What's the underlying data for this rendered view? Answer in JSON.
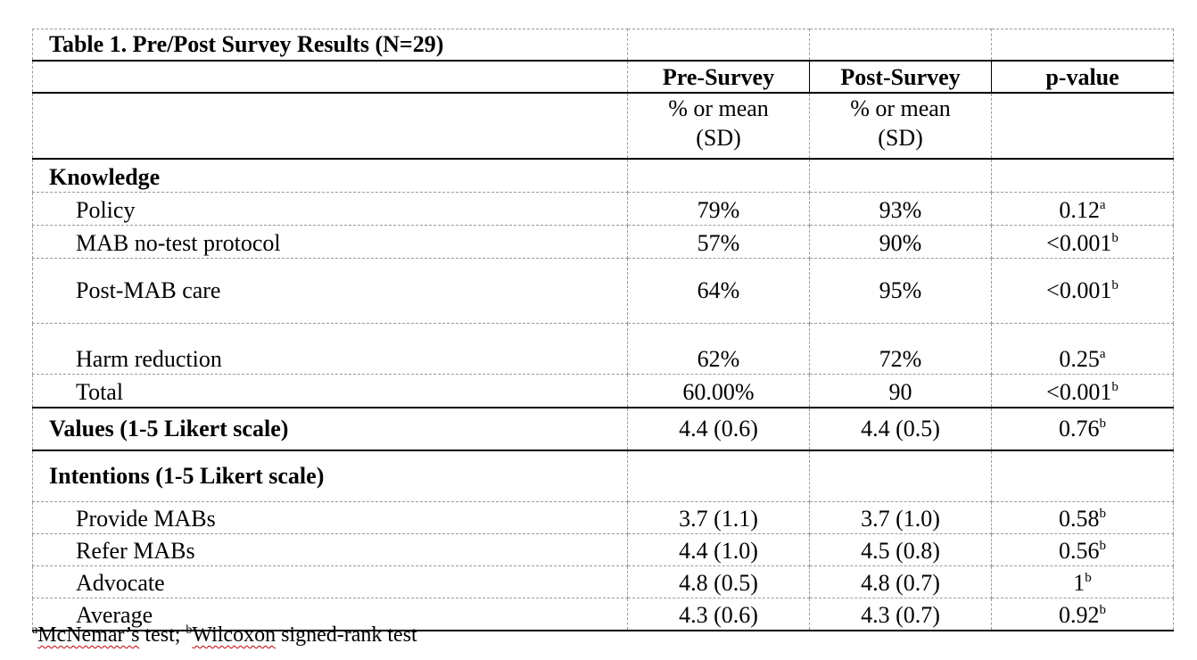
{
  "table": {
    "title": "Table 1. Pre/Post Survey Results (N=29)",
    "headers": [
      "",
      "Pre-Survey",
      "Post-Survey",
      "p-value"
    ],
    "subheaders": [
      "",
      "% or mean (SD)",
      "% or mean (SD)",
      ""
    ],
    "knowledge": {
      "label": "Knowledge",
      "rows": [
        {
          "label": "Policy",
          "pre": "79%",
          "post": "93%",
          "p": "0.12",
          "mark": "a"
        },
        {
          "label": "MAB no-test protocol",
          "pre": "57%",
          "post": "90%",
          "p": "<0.001",
          "mark": "b"
        },
        {
          "label": "Post-MAB care",
          "pre": "64%",
          "post": "95%",
          "p": "<0.001",
          "mark": "b"
        },
        {
          "label": "Harm reduction",
          "pre": "62%",
          "post": "72%",
          "p": "0.25",
          "mark": "a"
        },
        {
          "label": "Total",
          "pre": "60.00%",
          "post": "90",
          "p": "<0.001",
          "mark": "b"
        }
      ]
    },
    "values": {
      "label": "Values (1-5 Likert scale)",
      "pre": "4.4 (0.6)",
      "post": "4.4 (0.5)",
      "p": "0.76",
      "mark": "b"
    },
    "intentions": {
      "label": "Intentions (1-5 Likert scale)",
      "rows": [
        {
          "label": "Provide MABs",
          "pre": "3.7 (1.1)",
          "post": "3.7 (1.0)",
          "p": "0.58",
          "mark": "b"
        },
        {
          "label": "Refer MABs",
          "pre": "4.4 (1.0)",
          "post": "4.5 (0.8)",
          "p": "0.56",
          "mark": "b"
        },
        {
          "label": "Advocate",
          "pre": "4.8 (0.5)",
          "post": "4.8 (0.7)",
          "p": "1",
          "mark": "b"
        },
        {
          "label": "Average",
          "pre": "4.3 (0.6)",
          "post": "4.3 (0.7)",
          "p": "0.92",
          "mark": "b"
        }
      ]
    }
  },
  "footnote": {
    "a_mark": "a",
    "a_text": "McNemar’s",
    "a_rest": " test; ",
    "b_mark": "b",
    "b_text": "Wilcoxon",
    "b_rest": " signed-rank test"
  }
}
